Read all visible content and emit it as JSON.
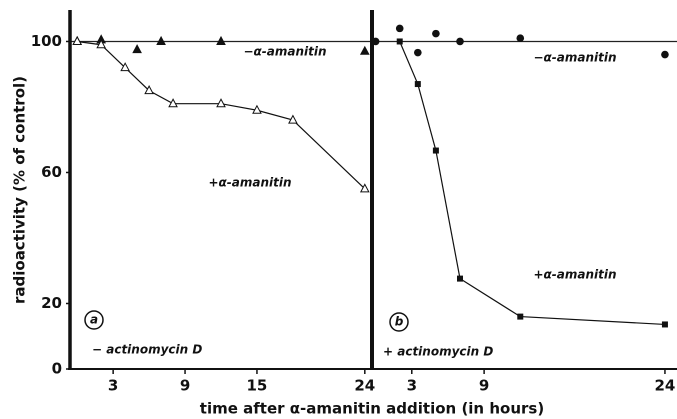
{
  "ylabel": "radioactivity (% of control)",
  "xlabel": "time after α-amanitin addition (in hours)",
  "chart_data": [
    {
      "type": "scatter",
      "panel": "a",
      "condition": "− actinomycin D",
      "xlim": [
        -0.6,
        24.6
      ],
      "xticks": [
        3,
        9,
        15,
        24
      ],
      "ylim": [
        0,
        109
      ],
      "yticks": [
        0,
        20,
        60,
        100
      ],
      "hline": 100,
      "series": [
        {
          "name": "−α-amanitin",
          "marker": "triangle-filled",
          "line": false,
          "color": "#111",
          "x": [
            0,
            2,
            5,
            7,
            12,
            24
          ],
          "values": [
            100,
            100.5,
            97.5,
            100,
            100,
            97
          ]
        },
        {
          "name": "+α-amanitin",
          "marker": "triangle-open",
          "line": true,
          "color": "#111",
          "x": [
            0,
            2,
            4,
            6,
            8,
            12,
            15,
            18,
            24
          ],
          "values": [
            100,
            99,
            92,
            85,
            81,
            81,
            79,
            76,
            55
          ]
        }
      ]
    },
    {
      "type": "scatter",
      "panel": "b",
      "condition": "+ actinomycin D",
      "xlim": [
        -0.3,
        25
      ],
      "xticks": [
        3,
        9,
        24
      ],
      "ylim": [
        0,
        109
      ],
      "hline": 100,
      "series": [
        {
          "name": "−α-amanitin",
          "marker": "circle",
          "line": false,
          "color": "#111",
          "x": [
            0,
            2,
            3.5,
            5,
            7,
            12,
            24
          ],
          "values": [
            100,
            104,
            96.6,
            102.4,
            100,
            101,
            96
          ]
        },
        {
          "name": "+α-amanitin",
          "marker": "square",
          "line": true,
          "color": "#111",
          "x": [
            2,
            3.5,
            5,
            7,
            12,
            24
          ],
          "values": [
            100,
            87,
            66.7,
            27.6,
            16,
            13.6
          ]
        }
      ]
    }
  ]
}
